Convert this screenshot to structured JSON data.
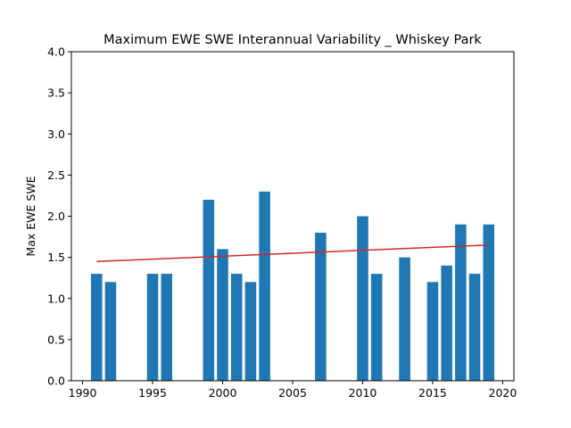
{
  "chart_data": {
    "type": "bar",
    "title": "Maximum EWE SWE Interannual Variability _ Whiskey Park",
    "xlabel": "",
    "ylabel": "Max EWE SWE",
    "xlim": [
      1989.2,
      2020.8
    ],
    "ylim": [
      0.0,
      4.0
    ],
    "xticks": [
      1990,
      1995,
      2000,
      2005,
      2010,
      2015,
      2020
    ],
    "xtick_labels": [
      "1990",
      "1995",
      "2000",
      "2005",
      "2010",
      "2015",
      "2020"
    ],
    "yticks": [
      0.0,
      0.5,
      1.0,
      1.5,
      2.0,
      2.5,
      3.0,
      3.5,
      4.0
    ],
    "ytick_labels": [
      "0.0",
      "0.5",
      "1.0",
      "1.5",
      "2.0",
      "2.5",
      "3.0",
      "3.5",
      "4.0"
    ],
    "grid": false,
    "bar_width": 0.8,
    "series": [
      {
        "x": [
          1991,
          1992,
          1995,
          1996,
          1999,
          2000,
          2001,
          2002,
          2003,
          2007,
          2010,
          2011,
          2013,
          2015,
          2016,
          2017,
          2018,
          2019
        ],
        "values": [
          1.3,
          1.2,
          1.3,
          1.3,
          2.2,
          1.6,
          1.3,
          1.2,
          2.3,
          1.8,
          2.0,
          1.3,
          1.5,
          1.2,
          1.4,
          1.9,
          1.3,
          1.9
        ],
        "color": "#1f77b4"
      }
    ],
    "trend_line": {
      "x": [
        1991,
        2019
      ],
      "y": [
        1.45,
        1.65
      ],
      "color": "#d62728"
    }
  }
}
